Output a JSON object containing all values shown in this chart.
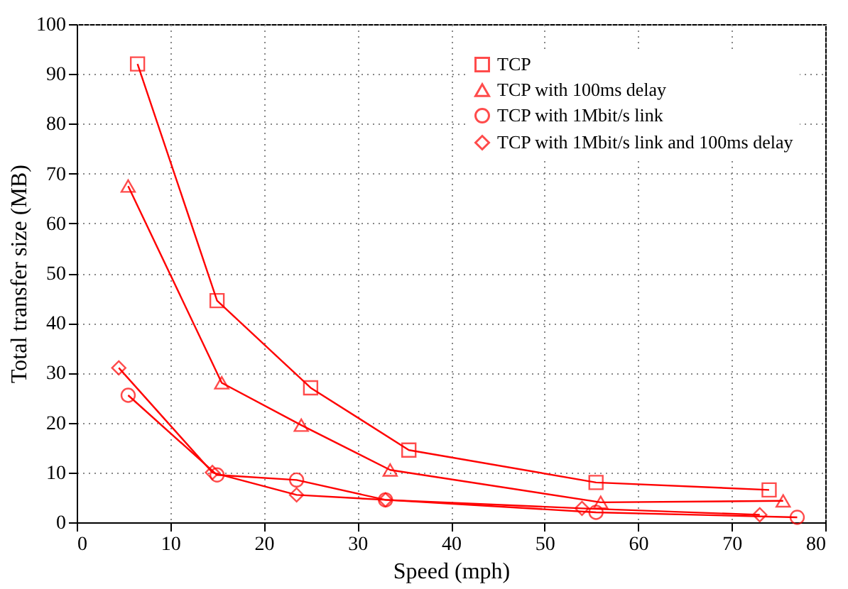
{
  "chart_data": {
    "type": "line",
    "xlabel": "Speed (mph)",
    "ylabel": "Total transfer size (MB)",
    "xlim": [
      0,
      80
    ],
    "xticks": [
      0,
      10,
      20,
      30,
      40,
      50,
      60,
      70,
      80
    ],
    "ylim": [
      0,
      100
    ],
    "yticks": [
      0,
      10,
      20,
      30,
      40,
      50,
      60,
      70,
      80,
      90,
      100
    ],
    "grid": true,
    "legend": "top right",
    "line_style": "solid",
    "series": [
      {
        "name": "TCP",
        "color": "#ff0000",
        "marker": "square",
        "x": [
          6.5,
          15,
          25,
          35.5,
          55.5,
          74
        ],
        "values": [
          92,
          44.5,
          27,
          14.5,
          8,
          6.5
        ]
      },
      {
        "name": "TCP with 100ms delay",
        "color": "#ff0000",
        "marker": "triangle",
        "x": [
          5.5,
          15.5,
          24,
          33.5,
          56,
          75.5
        ],
        "values": [
          67.5,
          28,
          19.5,
          10.5,
          4,
          4.3
        ]
      },
      {
        "name": "TCP with 1Mbit/s link",
        "color": "#ff0000",
        "marker": "circle",
        "x": [
          5.5,
          15,
          23.5,
          33,
          55.5,
          77
        ],
        "values": [
          25.5,
          9.5,
          8.5,
          4.5,
          2,
          1
        ]
      },
      {
        "name": "TCP with 1Mbit/s link and 100ms delay",
        "color": "#ff0000",
        "marker": "diamond",
        "x": [
          4.5,
          14.5,
          23.5,
          33,
          54,
          73
        ],
        "values": [
          31,
          10,
          5.5,
          4.5,
          2.8,
          1.5
        ]
      }
    ]
  }
}
